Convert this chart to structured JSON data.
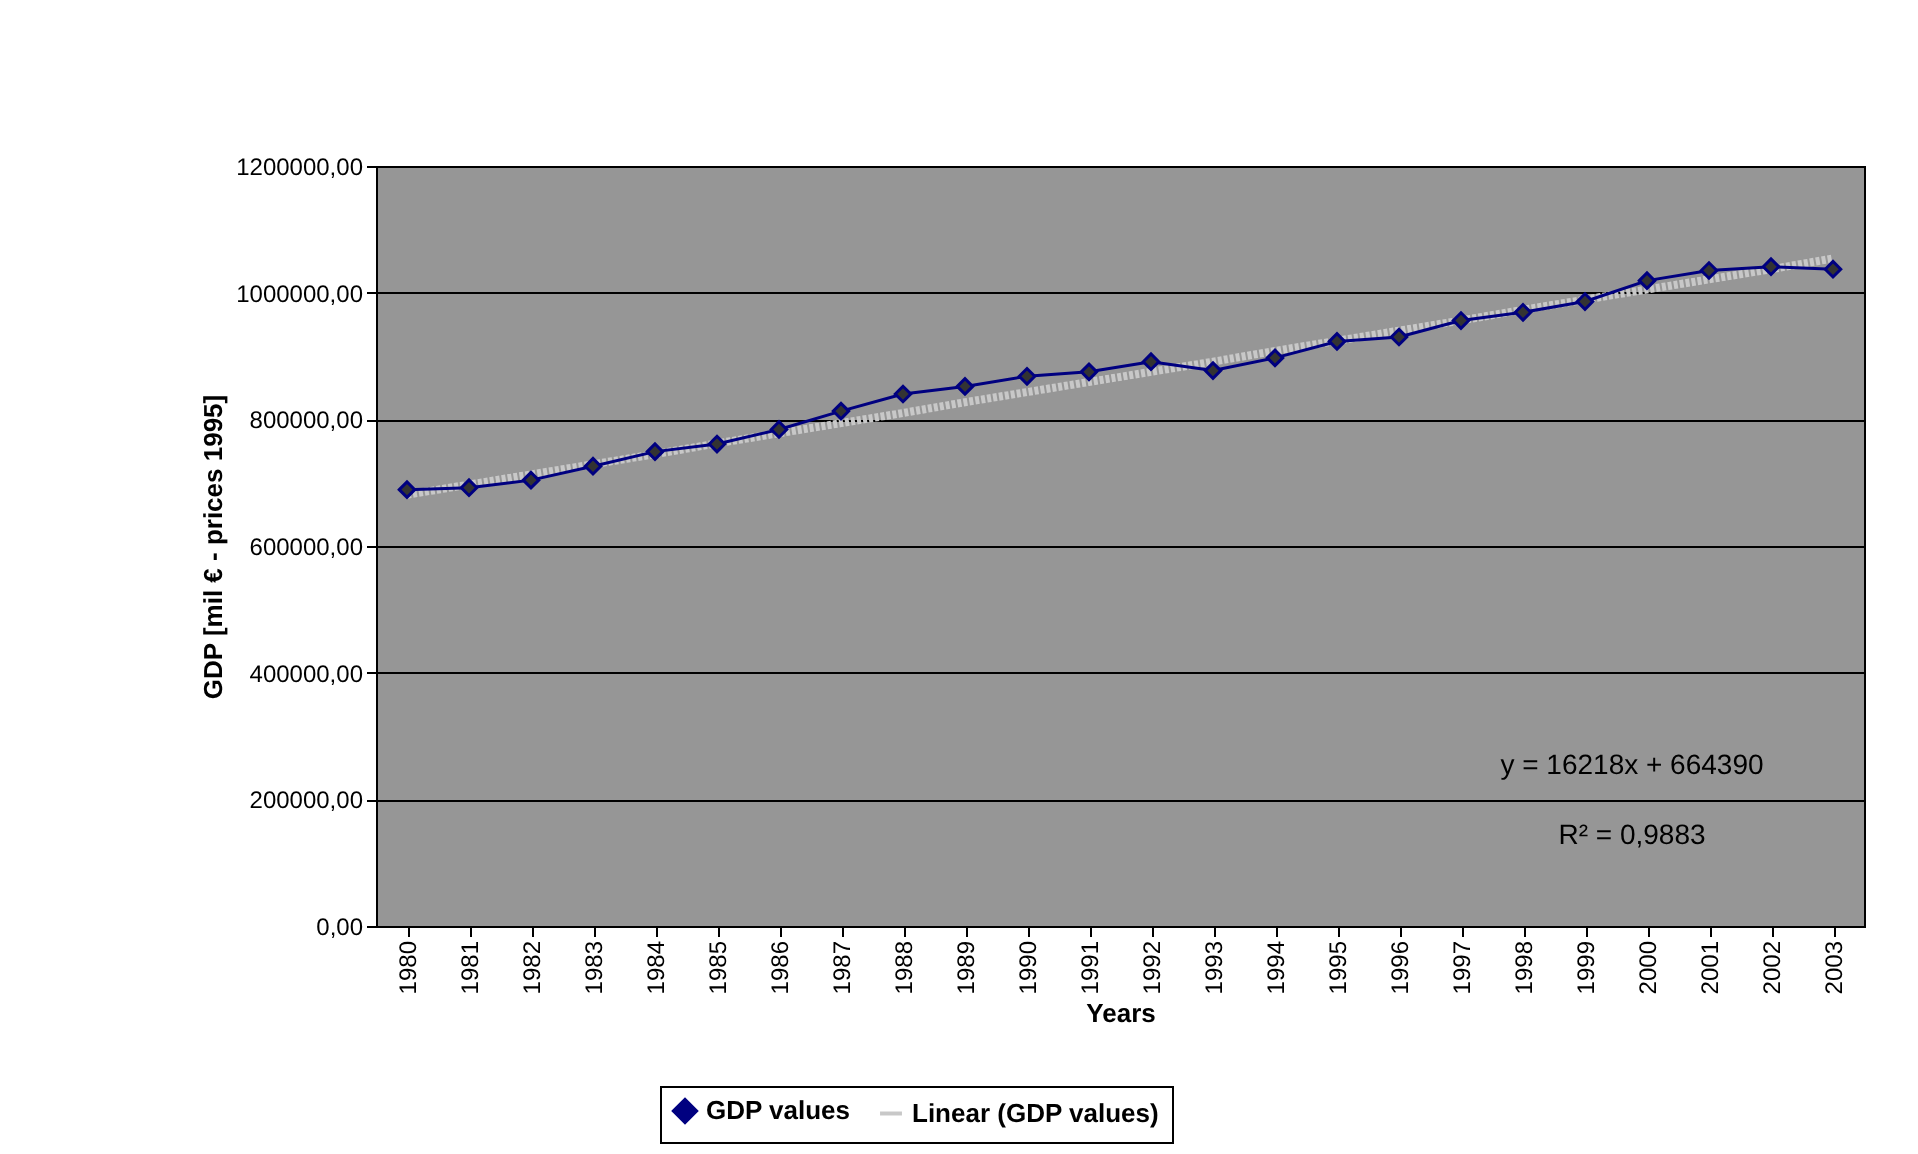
{
  "chart_data": {
    "type": "line",
    "xlabel": "Years",
    "ylabel": "GDP [mil € - prices 1995]",
    "categories": [
      "1980",
      "1981",
      "1982",
      "1983",
      "1984",
      "1985",
      "1986",
      "1987",
      "1988",
      "1989",
      "1990",
      "1991",
      "1992",
      "1993",
      "1994",
      "1995",
      "1996",
      "1997",
      "1998",
      "1999",
      "2000",
      "2001",
      "2002",
      "2003"
    ],
    "series": [
      {
        "name": "GDP values",
        "color": "#000080",
        "marker": "diamond",
        "line_style": "solid",
        "values": [
          689000,
          692000,
          704000,
          726000,
          749000,
          761000,
          784000,
          813000,
          840000,
          852000,
          868000,
          875000,
          891000,
          877000,
          897000,
          923000,
          930000,
          956000,
          969000,
          986000,
          1019000,
          1035000,
          1041000,
          1037000
        ]
      },
      {
        "name": "Linear (GDP values)",
        "type": "line",
        "color": "#c8c8c8",
        "marker": "none",
        "line_style": "dotted",
        "values": [
          681000,
          697000,
          713000,
          729000,
          745000,
          762000,
          778000,
          794000,
          810000,
          827000,
          843000,
          859000,
          875000,
          891000,
          908000,
          924000,
          940000,
          956000,
          973000,
          989000,
          1005000,
          1021000,
          1037000,
          1054000
        ]
      }
    ],
    "ylim": [
      0,
      1200000
    ],
    "yticks": [
      {
        "value": 0,
        "label": "0,00"
      },
      {
        "value": 200000,
        "label": "200000,00"
      },
      {
        "value": 400000,
        "label": "400000,00"
      },
      {
        "value": 600000,
        "label": "600000,00"
      },
      {
        "value": 800000,
        "label": "800000,00"
      },
      {
        "value": 1000000,
        "label": "1000000,00"
      },
      {
        "value": 1200000,
        "label": "1200000,00"
      }
    ],
    "grid": "y",
    "legend": "bottom",
    "annotations": [
      "y = 16218x + 664390",
      "R² = 0,9883"
    ]
  }
}
